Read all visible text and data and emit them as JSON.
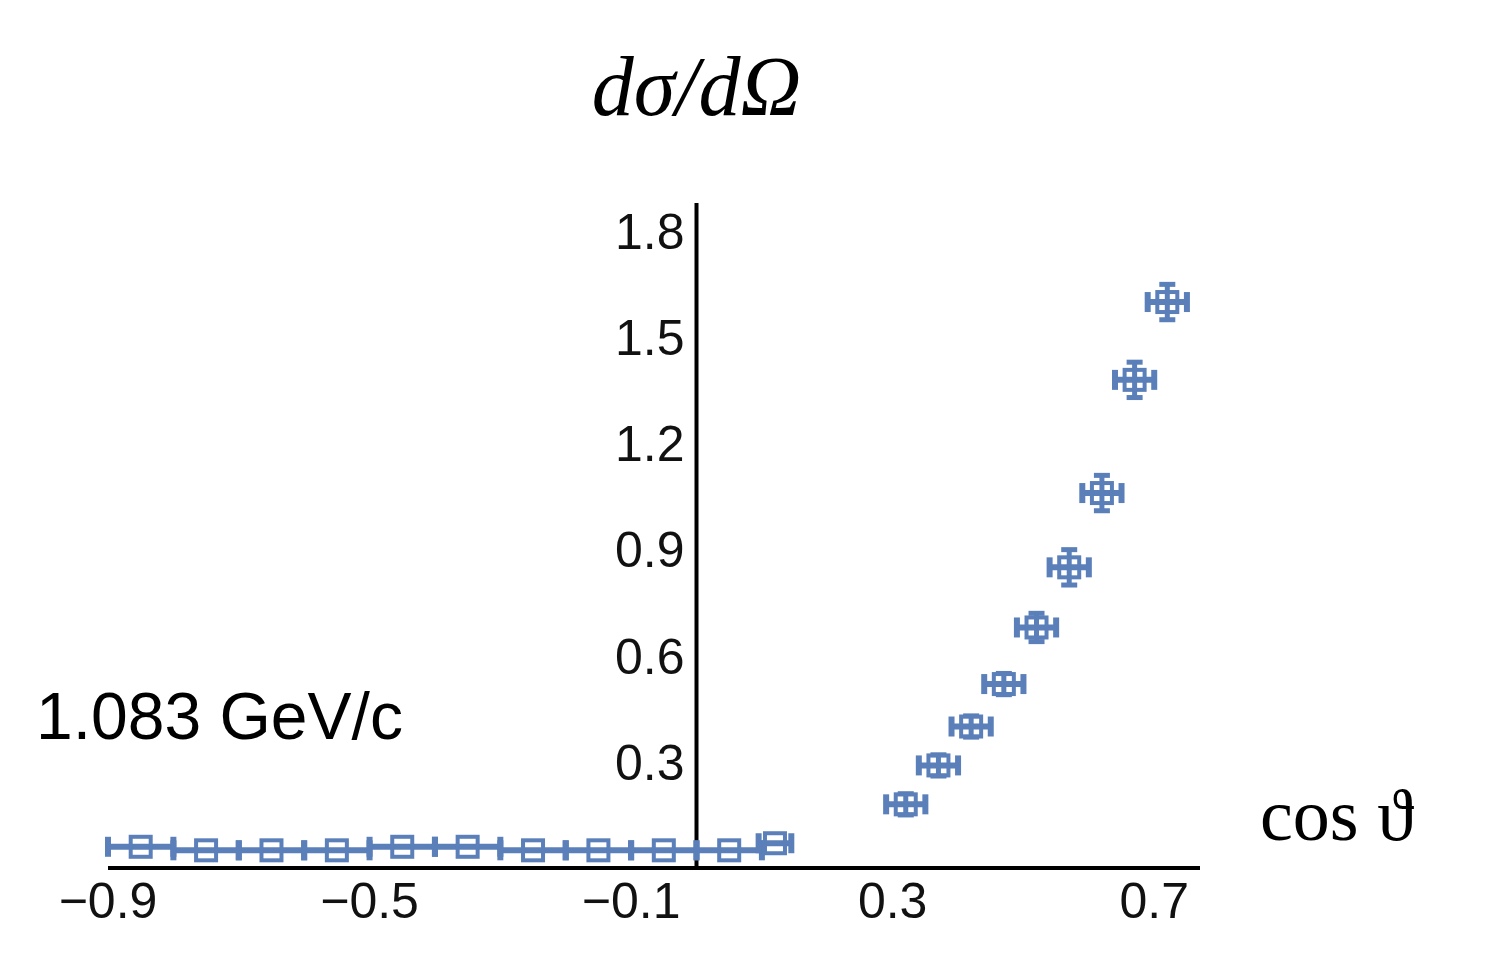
{
  "chart_data": {
    "type": "scatter",
    "ylabel": "dσ/dΩ",
    "xlabel": "cos ϑ",
    "annotations": [
      "1.083 GeV/c"
    ],
    "series": [
      {
        "color": "#5a7fb9",
        "x": [
          -0.85,
          -0.75,
          -0.65,
          -0.55,
          -0.45,
          -0.35,
          -0.25,
          -0.15,
          -0.05,
          0.05,
          0.12,
          0.32,
          0.37,
          0.42,
          0.47,
          0.52,
          0.57,
          0.62,
          0.67,
          0.72
        ],
        "values": [
          0.06,
          0.05,
          0.05,
          0.05,
          0.06,
          0.06,
          0.05,
          0.05,
          0.05,
          0.05,
          0.07,
          0.18,
          0.29,
          0.4,
          0.52,
          0.68,
          0.85,
          1.06,
          1.38,
          1.6
        ],
        "xerrors": [
          0.05,
          0.05,
          0.05,
          0.05,
          0.05,
          0.05,
          0.05,
          0.05,
          0.05,
          0.05,
          0.025,
          0.03,
          0.03,
          0.03,
          0.03,
          0.03,
          0.03,
          0.03,
          0.03,
          0.03
        ],
        "errors": [
          null,
          null,
          null,
          null,
          null,
          null,
          null,
          null,
          null,
          null,
          null,
          0.03,
          0.03,
          0.03,
          0.03,
          0.04,
          0.05,
          0.05,
          0.05,
          0.05
        ]
      }
    ],
    "xlim": [
      -0.9,
      0.77
    ],
    "ylim": [
      0,
      1.88
    ],
    "xticks": [
      {
        "value": -0.9,
        "label": "−0.9"
      },
      {
        "value": -0.5,
        "label": "−0.5"
      },
      {
        "value": -0.1,
        "label": "−0.1"
      },
      {
        "value": 0.3,
        "label": "0.3"
      },
      {
        "value": 0.7,
        "label": "0.7"
      }
    ],
    "yticks": [
      0.3,
      0.6,
      0.9,
      1.2,
      1.5,
      1.8
    ],
    "marker": "square",
    "grid": false,
    "legend": false
  }
}
